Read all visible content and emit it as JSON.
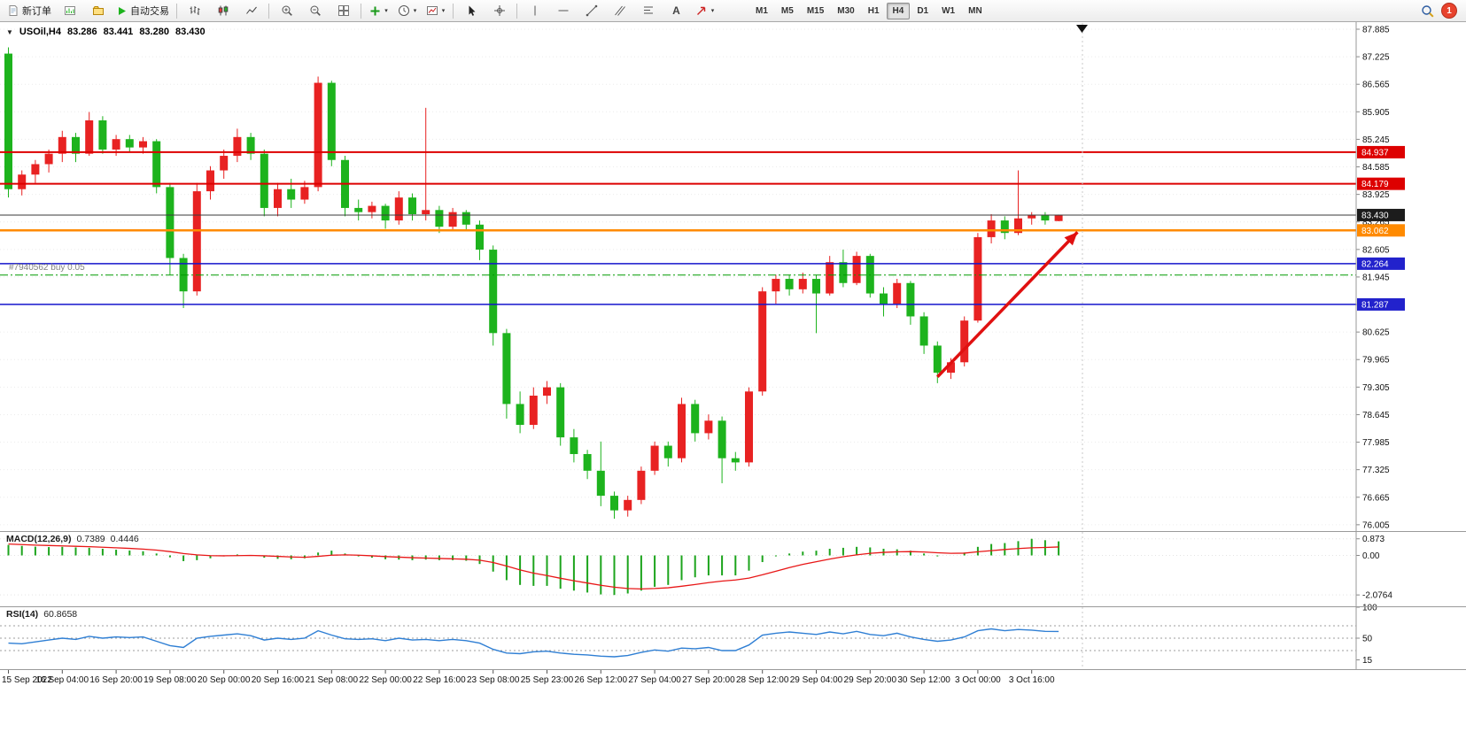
{
  "icons": {
    "collapse_glyph": "▼",
    "caret_glyph": "▾",
    "text_tool_glyph": "A"
  },
  "toolbar": {
    "new_order_label": "新订单",
    "autotrading_label": "自动交易",
    "timeframes": [
      "M1",
      "M5",
      "M15",
      "M30",
      "H1",
      "H4",
      "D1",
      "W1",
      "MN"
    ],
    "active_timeframe": "H4",
    "notification_badge": "1"
  },
  "chart": {
    "position_line": {
      "label": "#7940562 buy 0.05",
      "price": 81.99,
      "color": "#009a00"
    },
    "levels": [
      {
        "price": 84.937,
        "color": "#dd0000",
        "width": 2,
        "tag_bg": "#dd0000"
      },
      {
        "price": 84.179,
        "color": "#dd0000",
        "width": 2,
        "tag_bg": "#dd0000"
      },
      {
        "price": 83.43,
        "color": "#3a3a3a",
        "width": 1,
        "tag_bg": "#1c1c1c"
      },
      {
        "price": 83.062,
        "color": "#ff8a00",
        "width": 2.5,
        "tag_bg": "#ff8a00"
      },
      {
        "price": 82.264,
        "color": "#1515cc",
        "width": 1.5,
        "tag_bg": "#2222cc"
      },
      {
        "price": 81.287,
        "color": "#1515cc",
        "width": 1.5,
        "tag_bg": "#2222cc"
      }
    ],
    "price_axis_labels": [
      "87.885",
      "87.225",
      "86.565",
      "85.905",
      "85.245",
      "84.585",
      "83.925",
      "83.265",
      "82.605",
      "81.945",
      "81.285",
      "80.625",
      "79.965",
      "79.305",
      "78.645",
      "77.985",
      "77.325",
      "76.665",
      "76.005"
    ],
    "time_axis_labels": [
      "15 Sep 2022",
      "16 Sep 04:00",
      "16 Sep 20:00",
      "19 Sep 08:00",
      "20 Sep 00:00",
      "20 Sep 16:00",
      "21 Sep 08:00",
      "22 Sep 00:00",
      "22 Sep 16:00",
      "23 Sep 08:00",
      "25 Sep 23:00",
      "26 Sep 12:00",
      "27 Sep 04:00",
      "27 Sep 20:00",
      "28 Sep 12:00",
      "29 Sep 04:00",
      "29 Sep 20:00",
      "30 Sep 12:00",
      "3 Oct 00:00",
      "3 Oct 16:00"
    ],
    "arrow_annotation": {
      "from_bar": 69,
      "from_price": 79.55,
      "to_bar": 79.4,
      "to_price": 83.02,
      "color": "#e01010"
    }
  },
  "chart_data": {
    "type": "candlestick",
    "title": "USOil,H4",
    "ohlc_display": {
      "open": "83.286",
      "high": "83.441",
      "low": "83.280",
      "close": "83.430"
    },
    "ylim": [
      76.005,
      87.885
    ],
    "up_color": "#e82222",
    "down_color": "#1db31d",
    "candles": [
      [
        87.3,
        87.45,
        83.85,
        84.05
      ],
      [
        84.05,
        84.5,
        83.9,
        84.4
      ],
      [
        84.4,
        84.75,
        84.2,
        84.65
      ],
      [
        84.65,
        85.0,
        84.45,
        84.9
      ],
      [
        84.9,
        85.45,
        84.7,
        85.3
      ],
      [
        85.3,
        85.4,
        84.7,
        84.9
      ],
      [
        84.9,
        85.9,
        84.85,
        85.7
      ],
      [
        85.7,
        85.8,
        84.9,
        85.0
      ],
      [
        85.0,
        85.35,
        84.85,
        85.25
      ],
      [
        85.25,
        85.35,
        84.95,
        85.05
      ],
      [
        85.05,
        85.3,
        84.9,
        85.2
      ],
      [
        85.2,
        85.25,
        83.95,
        84.1
      ],
      [
        84.1,
        84.2,
        82.0,
        82.4
      ],
      [
        82.4,
        82.5,
        81.2,
        81.6
      ],
      [
        81.6,
        84.2,
        81.5,
        84.0
      ],
      [
        84.0,
        84.6,
        83.8,
        84.5
      ],
      [
        84.5,
        85.0,
        84.3,
        84.85
      ],
      [
        84.85,
        85.5,
        84.7,
        85.3
      ],
      [
        85.3,
        85.4,
        84.75,
        84.9
      ],
      [
        84.9,
        85.0,
        83.4,
        83.6
      ],
      [
        83.6,
        84.2,
        83.4,
        84.05
      ],
      [
        84.05,
        84.3,
        83.6,
        83.8
      ],
      [
        83.8,
        84.25,
        83.7,
        84.1
      ],
      [
        84.1,
        86.75,
        84.0,
        86.6
      ],
      [
        86.6,
        86.65,
        84.6,
        84.75
      ],
      [
        84.75,
        84.85,
        83.4,
        83.6
      ],
      [
        83.6,
        83.8,
        83.3,
        83.5
      ],
      [
        83.5,
        83.75,
        83.35,
        83.65
      ],
      [
        83.65,
        83.7,
        83.1,
        83.3
      ],
      [
        83.3,
        84.0,
        83.2,
        83.85
      ],
      [
        83.85,
        83.95,
        83.3,
        83.45
      ],
      [
        83.45,
        86.0,
        83.3,
        83.55
      ],
      [
        83.55,
        83.65,
        83.0,
        83.15
      ],
      [
        83.15,
        83.6,
        83.05,
        83.5
      ],
      [
        83.5,
        83.55,
        83.05,
        83.2
      ],
      [
        83.2,
        83.3,
        82.35,
        82.6
      ],
      [
        82.6,
        82.7,
        80.3,
        80.6
      ],
      [
        80.6,
        80.7,
        78.55,
        78.9
      ],
      [
        78.9,
        79.2,
        78.2,
        78.4
      ],
      [
        78.4,
        79.3,
        78.3,
        79.1
      ],
      [
        79.1,
        79.45,
        78.9,
        79.3
      ],
      [
        79.3,
        79.4,
        77.9,
        78.1
      ],
      [
        78.1,
        78.3,
        77.5,
        77.7
      ],
      [
        77.7,
        77.8,
        77.1,
        77.3
      ],
      [
        77.3,
        78.0,
        76.45,
        76.7
      ],
      [
        76.7,
        76.8,
        76.15,
        76.35
      ],
      [
        76.35,
        76.7,
        76.2,
        76.6
      ],
      [
        76.6,
        77.4,
        76.5,
        77.3
      ],
      [
        77.3,
        78.0,
        77.2,
        77.9
      ],
      [
        77.9,
        78.0,
        77.4,
        77.6
      ],
      [
        77.6,
        79.05,
        77.5,
        78.9
      ],
      [
        78.9,
        79.0,
        78.0,
        78.2
      ],
      [
        78.2,
        78.65,
        78.05,
        78.5
      ],
      [
        78.5,
        78.6,
        77.0,
        77.6
      ],
      [
        77.6,
        77.75,
        77.3,
        77.5
      ],
      [
        77.5,
        79.3,
        77.4,
        79.2
      ],
      [
        79.2,
        81.7,
        79.1,
        81.6
      ],
      [
        81.6,
        82.0,
        81.3,
        81.9
      ],
      [
        81.9,
        82.0,
        81.5,
        81.65
      ],
      [
        81.65,
        82.05,
        81.55,
        81.9
      ],
      [
        81.9,
        82.0,
        80.6,
        81.55
      ],
      [
        81.55,
        82.45,
        81.5,
        82.3
      ],
      [
        82.3,
        82.6,
        81.7,
        81.8
      ],
      [
        81.8,
        82.55,
        81.75,
        82.45
      ],
      [
        82.45,
        82.5,
        81.45,
        81.55
      ],
      [
        81.55,
        81.7,
        81.0,
        81.3
      ],
      [
        81.3,
        81.9,
        81.2,
        81.8
      ],
      [
        81.8,
        81.85,
        80.8,
        81.0
      ],
      [
        81.0,
        81.1,
        80.1,
        80.3
      ],
      [
        80.3,
        80.4,
        79.4,
        79.65
      ],
      [
        79.65,
        80.0,
        79.5,
        79.9
      ],
      [
        79.9,
        81.0,
        79.8,
        80.9
      ],
      [
        80.9,
        83.0,
        80.85,
        82.9
      ],
      [
        82.9,
        83.45,
        82.75,
        83.3
      ],
      [
        83.3,
        83.4,
        82.85,
        83.0
      ],
      [
        83.0,
        84.5,
        82.95,
        83.35
      ],
      [
        83.35,
        83.5,
        83.2,
        83.42
      ],
      [
        83.42,
        83.5,
        83.2,
        83.3
      ],
      [
        83.286,
        83.441,
        83.28,
        83.43
      ]
    ],
    "indicators": {
      "macd": {
        "label": "MACD(12,26,9)",
        "main_value": "0.7389",
        "signal_value": "0.4446",
        "histogram_color": "#1ca41c",
        "signal_color": "#e81717",
        "axis_labels": [
          [
            "0.873",
            0.873
          ],
          [
            "0.00",
            0
          ],
          [
            "-2.0764",
            -2.0764
          ]
        ],
        "histogram": [
          0.55,
          0.5,
          0.46,
          0.44,
          0.45,
          0.42,
          0.4,
          0.35,
          0.3,
          0.26,
          0.22,
          0.1,
          -0.1,
          -0.3,
          -0.25,
          -0.15,
          -0.05,
          0.05,
          0.02,
          -0.12,
          -0.18,
          -0.2,
          -0.15,
          0.15,
          0.25,
          0.1,
          -0.05,
          -0.12,
          -0.2,
          -0.22,
          -0.25,
          -0.22,
          -0.25,
          -0.25,
          -0.28,
          -0.45,
          -0.85,
          -1.3,
          -1.55,
          -1.6,
          -1.6,
          -1.75,
          -1.85,
          -1.95,
          -2.05,
          -2.08,
          -2.0,
          -1.85,
          -1.65,
          -1.55,
          -1.3,
          -1.15,
          -1.05,
          -1.05,
          -1.05,
          -0.8,
          -0.35,
          -0.05,
          0.1,
          0.2,
          0.25,
          0.35,
          0.4,
          0.45,
          0.42,
          0.35,
          0.32,
          0.25,
          0.1,
          -0.05,
          0.0,
          0.15,
          0.45,
          0.6,
          0.65,
          0.75,
          0.873,
          0.8,
          0.739
        ],
        "signal": [
          0.6,
          0.57,
          0.54,
          0.52,
          0.5,
          0.48,
          0.46,
          0.43,
          0.4,
          0.37,
          0.33,
          0.28,
          0.2,
          0.1,
          0.03,
          -0.01,
          -0.02,
          -0.01,
          0.0,
          -0.02,
          -0.05,
          -0.08,
          -0.1,
          -0.05,
          0.01,
          0.03,
          0.01,
          -0.02,
          -0.06,
          -0.09,
          -0.12,
          -0.14,
          -0.16,
          -0.18,
          -0.2,
          -0.25,
          -0.37,
          -0.56,
          -0.76,
          -0.93,
          -1.06,
          -1.2,
          -1.33,
          -1.45,
          -1.57,
          -1.67,
          -1.74,
          -1.76,
          -1.74,
          -1.7,
          -1.62,
          -1.53,
          -1.43,
          -1.35,
          -1.29,
          -1.19,
          -1.02,
          -0.83,
          -0.64,
          -0.47,
          -0.33,
          -0.19,
          -0.07,
          0.03,
          0.11,
          0.16,
          0.19,
          0.2,
          0.18,
          0.14,
          0.11,
          0.12,
          0.19,
          0.25,
          0.31,
          0.36,
          0.4,
          0.42,
          0.4446
        ]
      },
      "rsi": {
        "label": "RSI(14)",
        "value": "60.8658",
        "line_color": "#2f7fd4",
        "axis_labels": [
          [
            "100",
            100
          ],
          [
            "50",
            50
          ],
          [
            "15",
            15
          ]
        ],
        "level_lines": [
          70,
          50,
          30
        ],
        "values": [
          42,
          41,
          44,
          47,
          50,
          48,
          53,
          50,
          52,
          51,
          52,
          45,
          38,
          35,
          50,
          53,
          55,
          57,
          54,
          47,
          50,
          48,
          50,
          62,
          55,
          49,
          48,
          49,
          46,
          50,
          47,
          48,
          46,
          48,
          46,
          42,
          32,
          26,
          25,
          28,
          29,
          26,
          24,
          23,
          21,
          20,
          22,
          27,
          31,
          29,
          34,
          33,
          35,
          30,
          30,
          39,
          55,
          58,
          60,
          58,
          56,
          60,
          57,
          61,
          56,
          54,
          58,
          52,
          48,
          45,
          47,
          52,
          62,
          65,
          62,
          64,
          63,
          61,
          60.8658
        ]
      }
    }
  }
}
